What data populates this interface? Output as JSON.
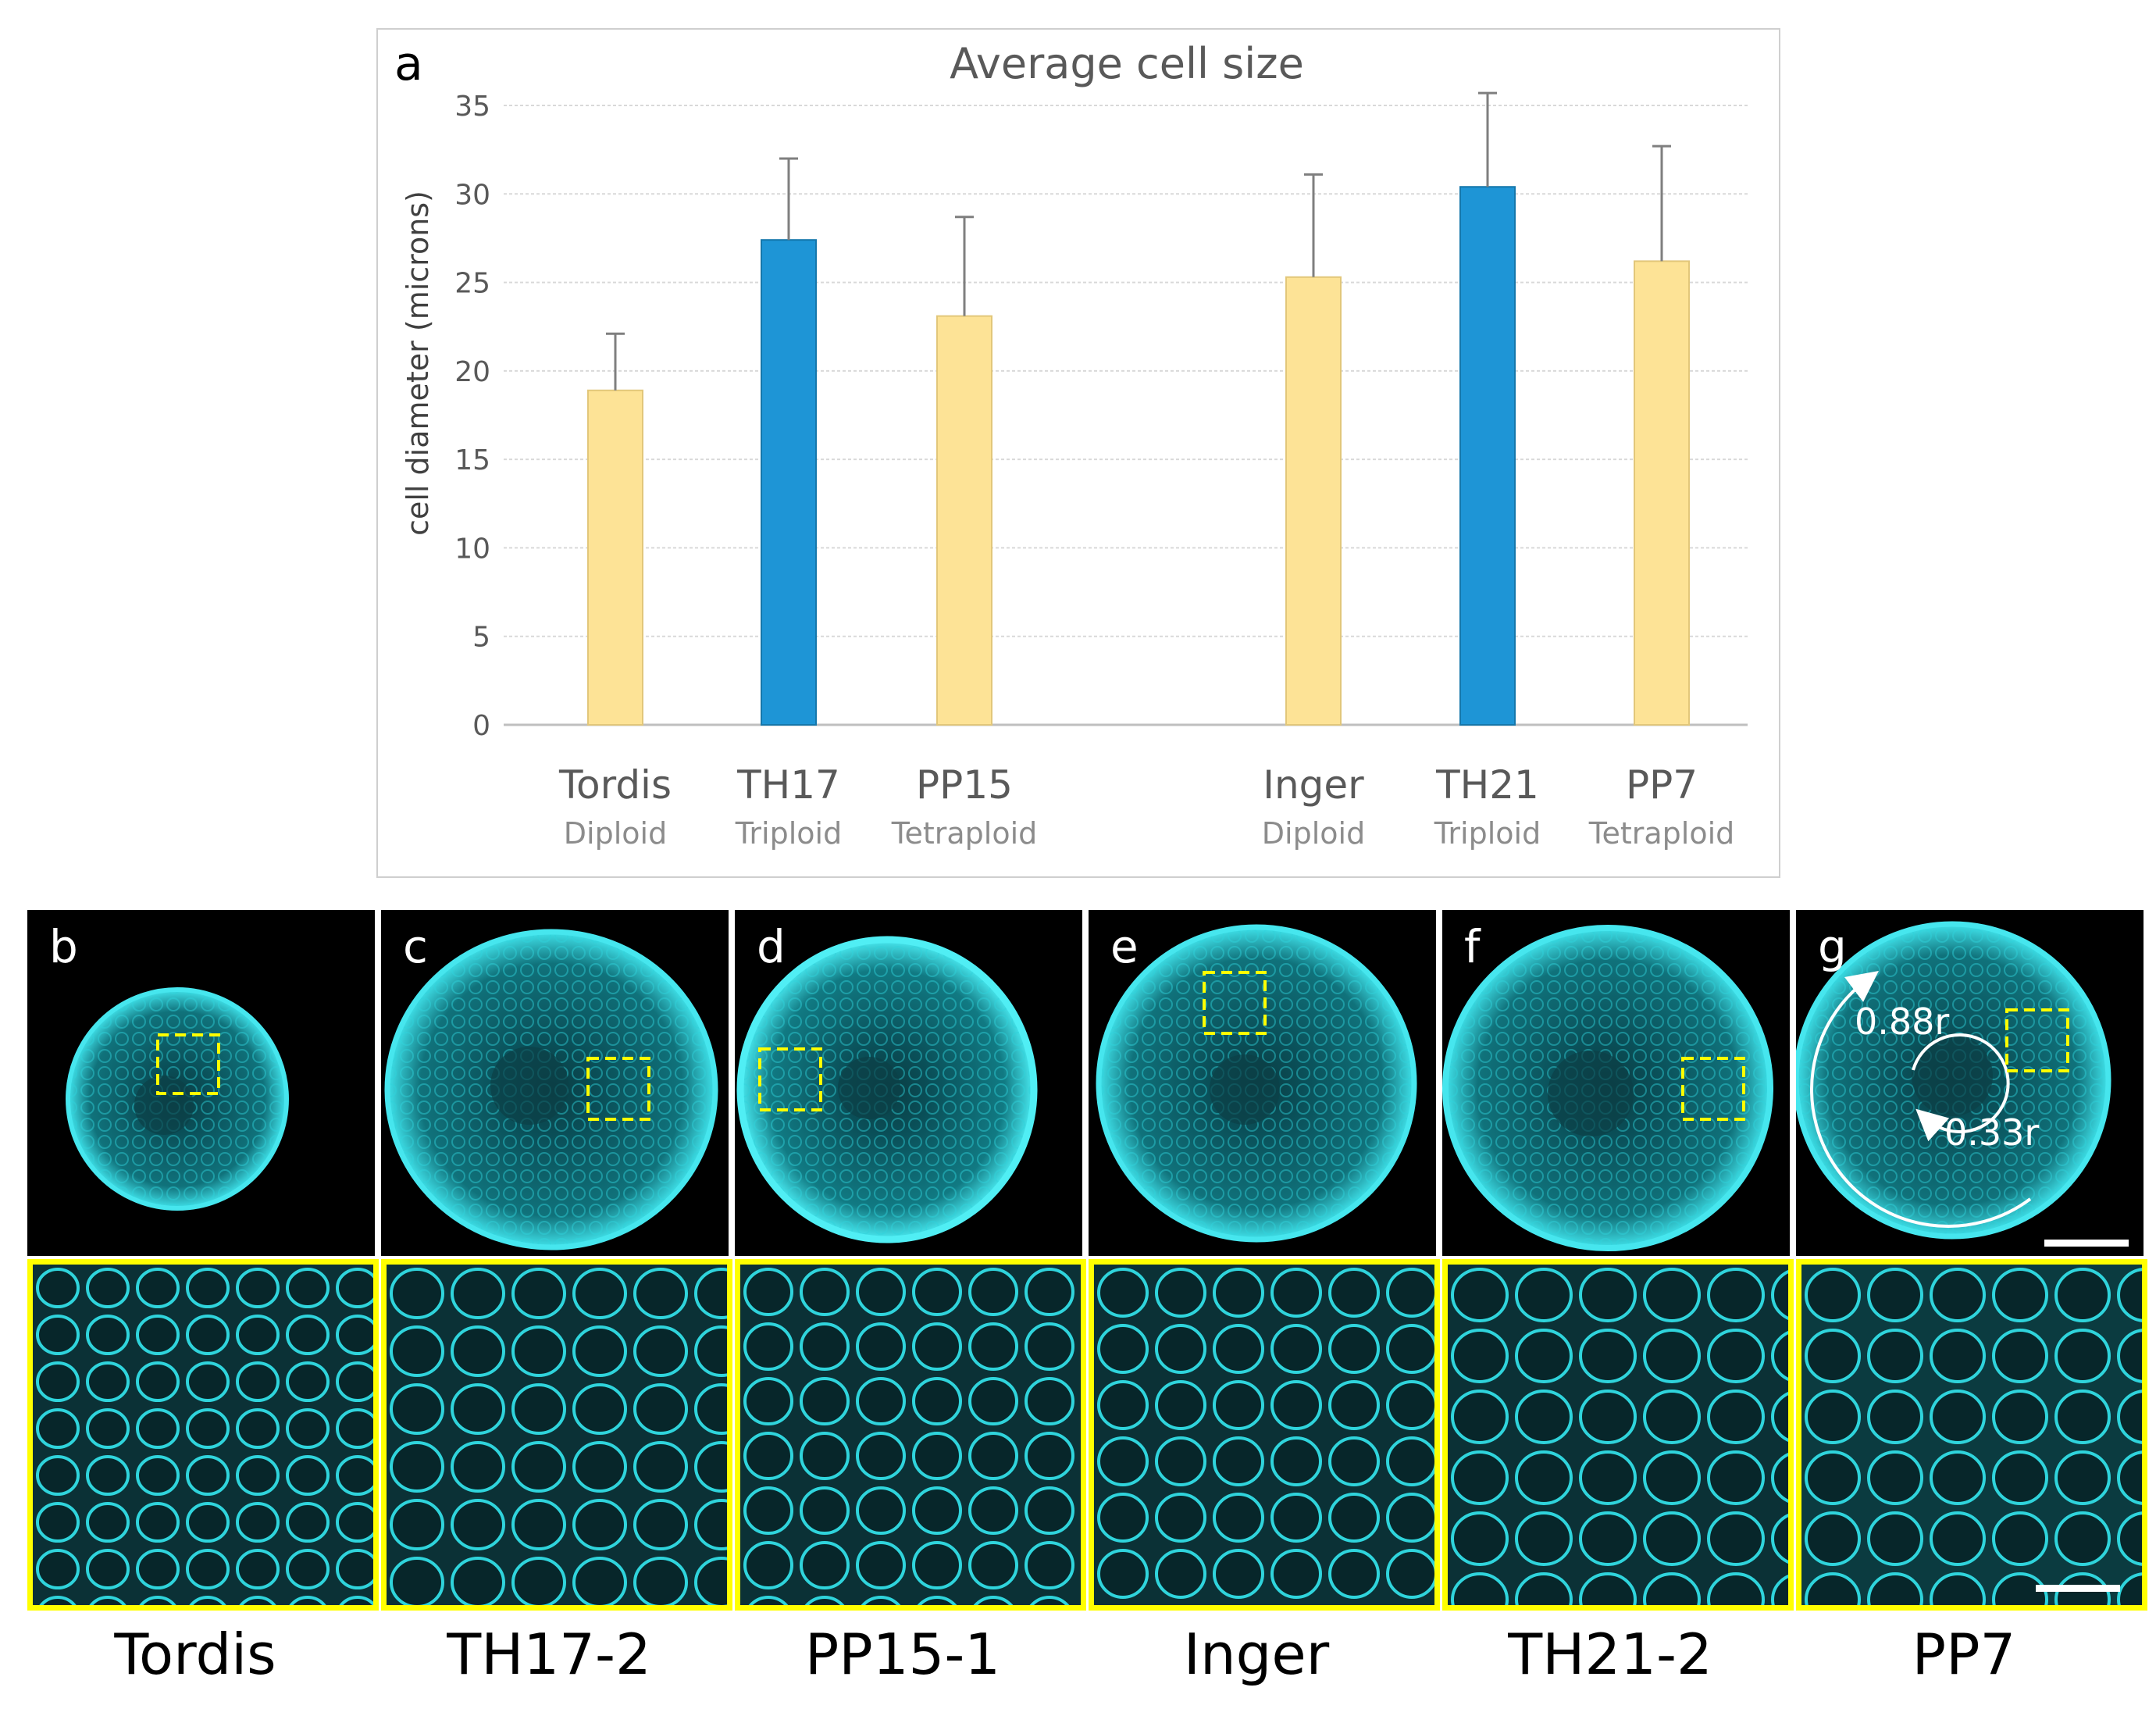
{
  "chart_data": {
    "type": "bar",
    "panel_label": "a",
    "title": "Average cell size",
    "ylabel": "cell diameter (microns)",
    "xlabel": "",
    "ylim": [
      0,
      35
    ],
    "yticks": [
      "0",
      "5",
      "10",
      "15",
      "20",
      "25",
      "30",
      "35"
    ],
    "grid": true,
    "categories": [
      "Tordis",
      "TH17",
      "PP15",
      "Inger",
      "TH21",
      "PP7"
    ],
    "sublabels": [
      "Diploid",
      "Triploid",
      "Tetraploid",
      "Diploid",
      "Triploid",
      "Tetraploid"
    ],
    "values": [
      18.9,
      27.4,
      23.1,
      25.3,
      30.4,
      26.2
    ],
    "errors": [
      3.2,
      4.6,
      5.6,
      5.8,
      5.3,
      6.5
    ],
    "colors": [
      "#fde396",
      "#1e95d6",
      "#fde396",
      "#fde396",
      "#1e95d6",
      "#fde396"
    ],
    "groups": [
      [
        "Tordis",
        "TH17",
        "PP15"
      ],
      [
        "Inger",
        "TH21",
        "PP7"
      ]
    ]
  },
  "panels": [
    {
      "letter": "b",
      "sample": "Tordis"
    },
    {
      "letter": "c",
      "sample": "TH17-2"
    },
    {
      "letter": "d",
      "sample": "PP15-1"
    },
    {
      "letter": "e",
      "sample": "Inger"
    },
    {
      "letter": "f",
      "sample": "TH21-2"
    },
    {
      "letter": "g",
      "sample": "PP7"
    }
  ],
  "annotations": {
    "outer_radius": "0.88r",
    "inner_radius": "0.33r"
  },
  "colors": {
    "stain": "#2fd4dc",
    "highlight_box": "#ffff00",
    "ploidy_even": "#fde396",
    "ploidy_triploid": "#1e95d6"
  }
}
